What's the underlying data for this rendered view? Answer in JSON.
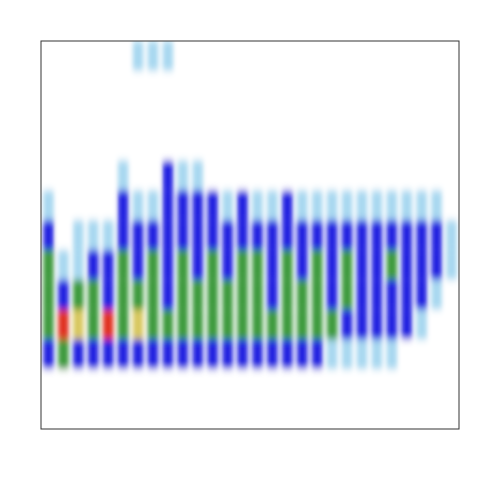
{
  "chart_data": {
    "type": "heatmap",
    "colors": [
      "#ffffff",
      "#a8d8f0",
      "#2424e0",
      "#3c9a3c",
      "#d8c860",
      "#e03020"
    ],
    "values": [
      [
        0,
        0,
        0,
        0,
        0,
        0,
        1,
        1,
        1,
        0,
        0,
        0,
        0,
        0,
        0,
        0,
        0,
        0,
        0,
        0,
        0,
        0,
        0,
        0,
        0,
        0,
        0,
        0
      ],
      [
        0,
        0,
        0,
        0,
        0,
        0,
        0,
        0,
        0,
        0,
        0,
        0,
        0,
        0,
        0,
        0,
        0,
        0,
        0,
        0,
        0,
        0,
        0,
        0,
        0,
        0,
        0,
        0
      ],
      [
        0,
        0,
        0,
        0,
        0,
        0,
        0,
        0,
        0,
        0,
        0,
        0,
        0,
        0,
        0,
        0,
        0,
        0,
        0,
        0,
        0,
        0,
        0,
        0,
        0,
        0,
        0,
        0
      ],
      [
        0,
        0,
        0,
        0,
        0,
        0,
        0,
        0,
        0,
        0,
        0,
        0,
        0,
        0,
        0,
        0,
        0,
        0,
        0,
        0,
        0,
        0,
        0,
        0,
        0,
        0,
        0,
        0
      ],
      [
        0,
        0,
        0,
        0,
        0,
        1,
        0,
        0,
        2,
        1,
        1,
        0,
        0,
        0,
        0,
        0,
        0,
        0,
        0,
        0,
        0,
        0,
        0,
        0,
        0,
        0,
        0,
        0
      ],
      [
        1,
        0,
        0,
        0,
        0,
        2,
        1,
        1,
        2,
        2,
        2,
        2,
        1,
        2,
        1,
        1,
        2,
        1,
        1,
        1,
        1,
        1,
        1,
        1,
        1,
        1,
        1,
        0
      ],
      [
        2,
        0,
        1,
        1,
        1,
        2,
        2,
        2,
        2,
        2,
        2,
        2,
        2,
        2,
        2,
        2,
        2,
        2,
        2,
        2,
        2,
        2,
        2,
        2,
        2,
        2,
        2,
        1
      ],
      [
        3,
        1,
        1,
        2,
        2,
        3,
        2,
        3,
        2,
        3,
        2,
        3,
        2,
        3,
        3,
        2,
        3,
        2,
        3,
        2,
        3,
        2,
        2,
        3,
        2,
        2,
        2,
        1
      ],
      [
        3,
        2,
        3,
        3,
        2,
        3,
        3,
        3,
        2,
        3,
        3,
        3,
        3,
        3,
        3,
        2,
        3,
        3,
        3,
        2,
        3,
        2,
        2,
        2,
        2,
        2,
        1,
        0
      ],
      [
        3,
        5,
        4,
        3,
        5,
        3,
        4,
        3,
        3,
        3,
        3,
        3,
        3,
        3,
        3,
        3,
        3,
        3,
        3,
        3,
        2,
        2,
        2,
        2,
        2,
        1,
        0,
        0
      ],
      [
        2,
        3,
        2,
        2,
        2,
        2,
        2,
        2,
        2,
        2,
        2,
        2,
        2,
        2,
        2,
        2,
        2,
        2,
        2,
        1,
        1,
        1,
        1,
        1,
        0,
        0,
        0,
        0
      ],
      [
        0,
        0,
        0,
        0,
        0,
        0,
        0,
        0,
        0,
        0,
        0,
        0,
        0,
        0,
        0,
        0,
        0,
        0,
        0,
        0,
        0,
        0,
        0,
        0,
        0,
        0,
        0,
        0
      ],
      [
        0,
        0,
        0,
        0,
        0,
        0,
        0,
        0,
        0,
        0,
        0,
        0,
        0,
        0,
        0,
        0,
        0,
        0,
        0,
        0,
        0,
        0,
        0,
        0,
        0,
        0,
        0,
        0
      ]
    ]
  }
}
